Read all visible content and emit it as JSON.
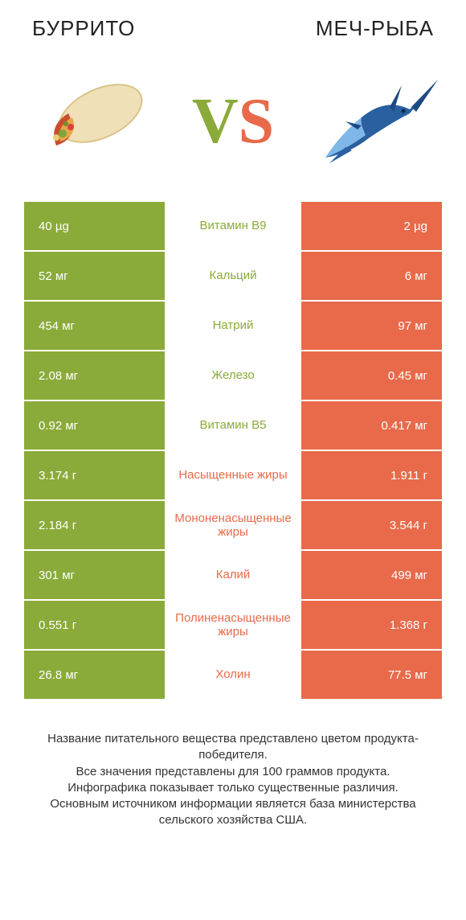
{
  "colors": {
    "green": "#8aab3a",
    "orange": "#e86a4a",
    "bg": "#ffffff",
    "text": "#333333"
  },
  "header": {
    "left_title": "БУРРИТО",
    "right_title": "МЕЧ-РЫБА"
  },
  "vs": {
    "v": "V",
    "s": "S"
  },
  "rows": [
    {
      "nutrient": "Витамин B9",
      "left": "40 µg",
      "right": "2 µg",
      "winner": "left"
    },
    {
      "nutrient": "Кальций",
      "left": "52 мг",
      "right": "6 мг",
      "winner": "left"
    },
    {
      "nutrient": "Натрий",
      "left": "454 мг",
      "right": "97 мг",
      "winner": "left"
    },
    {
      "nutrient": "Железо",
      "left": "2.08 мг",
      "right": "0.45 мг",
      "winner": "left"
    },
    {
      "nutrient": "Витамин B5",
      "left": "0.92 мг",
      "right": "0.417 мг",
      "winner": "left"
    },
    {
      "nutrient": "Насыщенные жиры",
      "left": "3.174 г",
      "right": "1.911 г",
      "winner": "right"
    },
    {
      "nutrient": "Мононенасыщенные жиры",
      "left": "2.184 г",
      "right": "3.544 г",
      "winner": "right"
    },
    {
      "nutrient": "Калий",
      "left": "301 мг",
      "right": "499 мг",
      "winner": "right"
    },
    {
      "nutrient": "Полиненасыщенные жиры",
      "left": "0.551 г",
      "right": "1.368 г",
      "winner": "right"
    },
    {
      "nutrient": "Холин",
      "left": "26.8 мг",
      "right": "77.5 мг",
      "winner": "right"
    }
  ],
  "footer": {
    "line1": "Название питательного вещества представлено цветом продукта-победителя.",
    "line2": "Все значения представлены для 100 граммов продукта.",
    "line3": "Инфографика показывает только существенные различия.",
    "line4": "Основным источником информации является база министерства сельского хозяйства США."
  }
}
